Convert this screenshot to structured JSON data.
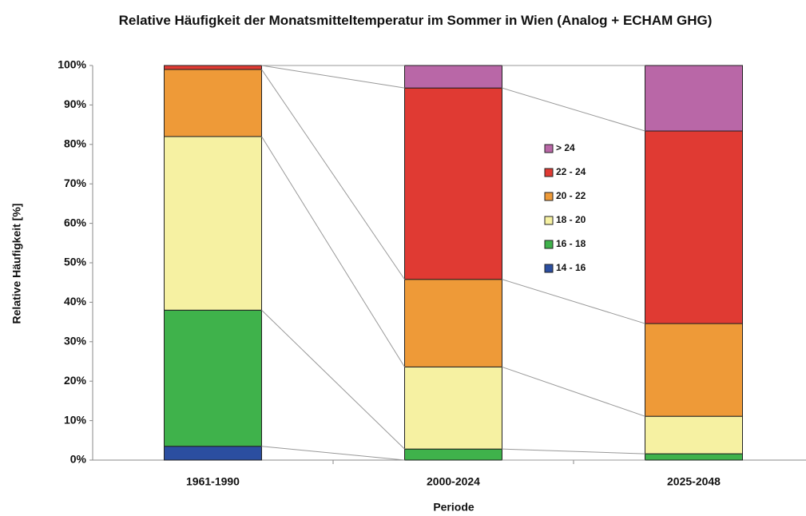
{
  "chart_data": {
    "type": "stacked_bar",
    "title": "Relative Häufigkeit der Monatsmitteltemperatur im Sommer in Wien (Analog + ECHAM GHG)",
    "xlabel": "Periode",
    "ylabel": "Relative Häufigkeit [%]",
    "categories": [
      "1961-1990",
      "2000-2024",
      "2025-2048"
    ],
    "series": [
      {
        "name": "14 - 16",
        "color": "#2b4ea0",
        "values": [
          3.5,
          0,
          0
        ]
      },
      {
        "name": "16 - 18",
        "color": "#3fb24b",
        "values": [
          34.5,
          2.8,
          1.6
        ]
      },
      {
        "name": "18 - 20",
        "color": "#f6f1a2",
        "values": [
          44,
          20.8,
          9.5
        ]
      },
      {
        "name": "20 - 22",
        "color": "#ee9a38",
        "values": [
          17,
          22.2,
          23.5
        ]
      },
      {
        "name": "22 - 24",
        "color": "#e03a33",
        "values": [
          1,
          48.5,
          48.8
        ]
      },
      {
        "name": "> 24",
        "color": "#b967a7",
        "values": [
          0,
          5.7,
          16.6
        ]
      }
    ],
    "ylim": [
      0,
      100
    ],
    "yticks": [
      {
        "value": 0,
        "label": "0%"
      },
      {
        "value": 10,
        "label": "10%"
      },
      {
        "value": 20,
        "label": "20%"
      },
      {
        "value": 30,
        "label": "30%"
      },
      {
        "value": 40,
        "label": "40%"
      },
      {
        "value": 50,
        "label": "50%"
      },
      {
        "value": 60,
        "label": "60%"
      },
      {
        "value": 70,
        "label": "70%"
      },
      {
        "value": 80,
        "label": "80%"
      },
      {
        "value": 90,
        "label": "90%"
      },
      {
        "value": 100,
        "label": "100%"
      }
    ],
    "grid": false,
    "legend_position": "center"
  }
}
